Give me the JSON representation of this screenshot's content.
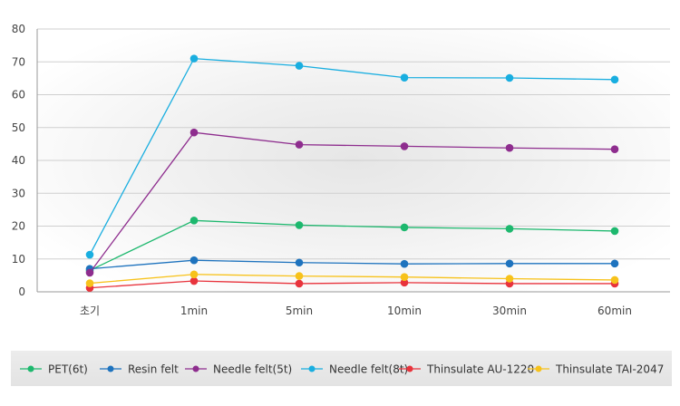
{
  "chart_data": {
    "type": "line",
    "title": "",
    "xlabel": "",
    "ylabel": "",
    "categories": [
      "초기",
      "1min",
      "5min",
      "10min",
      "30min",
      "60min"
    ],
    "ylim": [
      0,
      80
    ],
    "yticks": [
      0,
      10,
      20,
      30,
      40,
      50,
      60,
      70,
      80
    ],
    "grid": "horizontal",
    "legend_position": "bottom",
    "series": [
      {
        "name": "PET(6t)",
        "color": "#1db86e",
        "values": [
          6.5,
          21.7,
          20.3,
          19.6,
          19.2,
          18.5
        ]
      },
      {
        "name": "Resin felt",
        "color": "#1e73be",
        "values": [
          7.0,
          9.6,
          8.9,
          8.5,
          8.6,
          8.6
        ]
      },
      {
        "name": "Needle felt(5t)",
        "color": "#8e2d8e",
        "values": [
          5.8,
          48.5,
          44.8,
          44.3,
          43.8,
          43.4
        ]
      },
      {
        "name": "Needle felt(8t)",
        "color": "#19aee0",
        "values": [
          11.3,
          71.0,
          68.8,
          65.2,
          65.1,
          64.6
        ]
      },
      {
        "name": "Thinsulate AU-1220",
        "color": "#e8333c",
        "values": [
          1.2,
          3.3,
          2.5,
          2.8,
          2.5,
          2.5
        ]
      },
      {
        "name": "Thinsulate TAI-2047",
        "color": "#f7c21b",
        "values": [
          2.6,
          5.3,
          4.8,
          4.5,
          4.0,
          3.6
        ]
      }
    ]
  }
}
